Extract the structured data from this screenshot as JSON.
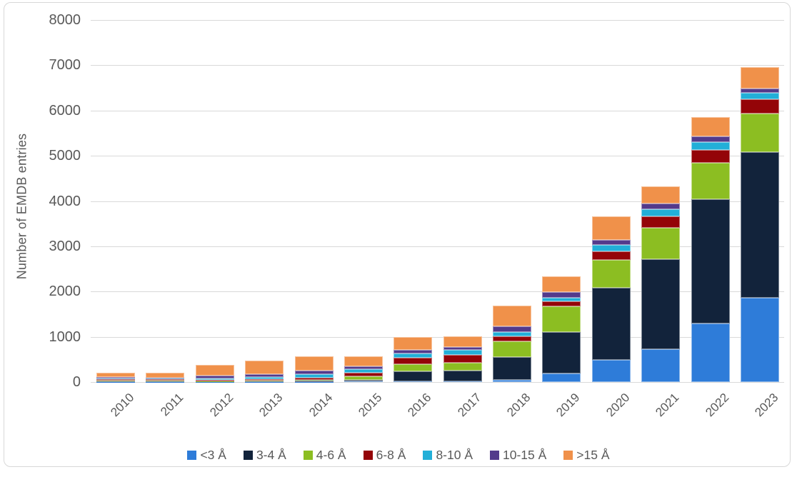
{
  "chart_data": {
    "type": "bar",
    "stacked": true,
    "title": "",
    "xlabel": "",
    "ylabel": "Number of EMDB entries",
    "ylim": [
      0,
      8000
    ],
    "ytick_step": 1000,
    "yticks": [
      "0",
      "1000",
      "2000",
      "3000",
      "4000",
      "5000",
      "6000",
      "7000",
      "8000"
    ],
    "grid": true,
    "legend_position": "bottom",
    "categories": [
      "2010",
      "2011",
      "2012",
      "2013",
      "2014",
      "2015",
      "2016",
      "2017",
      "2018",
      "2019",
      "2020",
      "2021",
      "2022",
      "2023"
    ],
    "series": [
      {
        "name": "<3 Å",
        "color": "#2E7CD9",
        "values": [
          2,
          2,
          2,
          2,
          5,
          10,
          15,
          10,
          50,
          195,
          495,
          725,
          1295,
          1860
        ]
      },
      {
        "name": "3-4 Å",
        "color": "#12233B",
        "values": [
          13,
          12,
          6,
          8,
          20,
          45,
          220,
          250,
          510,
          905,
          1590,
          1990,
          2745,
          3220
        ]
      },
      {
        "name": "4-6 Å",
        "color": "#8CBE22",
        "values": [
          20,
          20,
          15,
          20,
          30,
          70,
          160,
          160,
          345,
          570,
          615,
          690,
          805,
          850
        ]
      },
      {
        "name": "6-8 Å",
        "color": "#940408",
        "values": [
          25,
          22,
          20,
          35,
          45,
          75,
          145,
          175,
          105,
          110,
          180,
          255,
          285,
          315
        ]
      },
      {
        "name": "8-10 Å",
        "color": "#22AFD8",
        "values": [
          22,
          20,
          36,
          45,
          75,
          80,
          90,
          115,
          90,
          75,
          150,
          155,
          175,
          140
        ]
      },
      {
        "name": "10-15 Å",
        "color": "#533A8B",
        "values": [
          28,
          26,
          63,
          62,
          75,
          65,
          80,
          65,
          130,
          130,
          110,
          125,
          130,
          95
        ]
      },
      {
        "name": ">15 Å",
        "color": "#F0914A",
        "values": [
          90,
          110,
          240,
          303,
          315,
          220,
          290,
          240,
          460,
          345,
          520,
          385,
          420,
          475
        ]
      }
    ],
    "totals": [
      200,
      212,
      382,
      475,
      565,
      565,
      1000,
      1015,
      1690,
      2330,
      3660,
      4325,
      5855,
      6955
    ]
  },
  "colors": {
    "text": "#595959",
    "gridline": "#D9D9D9",
    "background": "#FFFFFF",
    "frame": "#D8D8D8"
  }
}
